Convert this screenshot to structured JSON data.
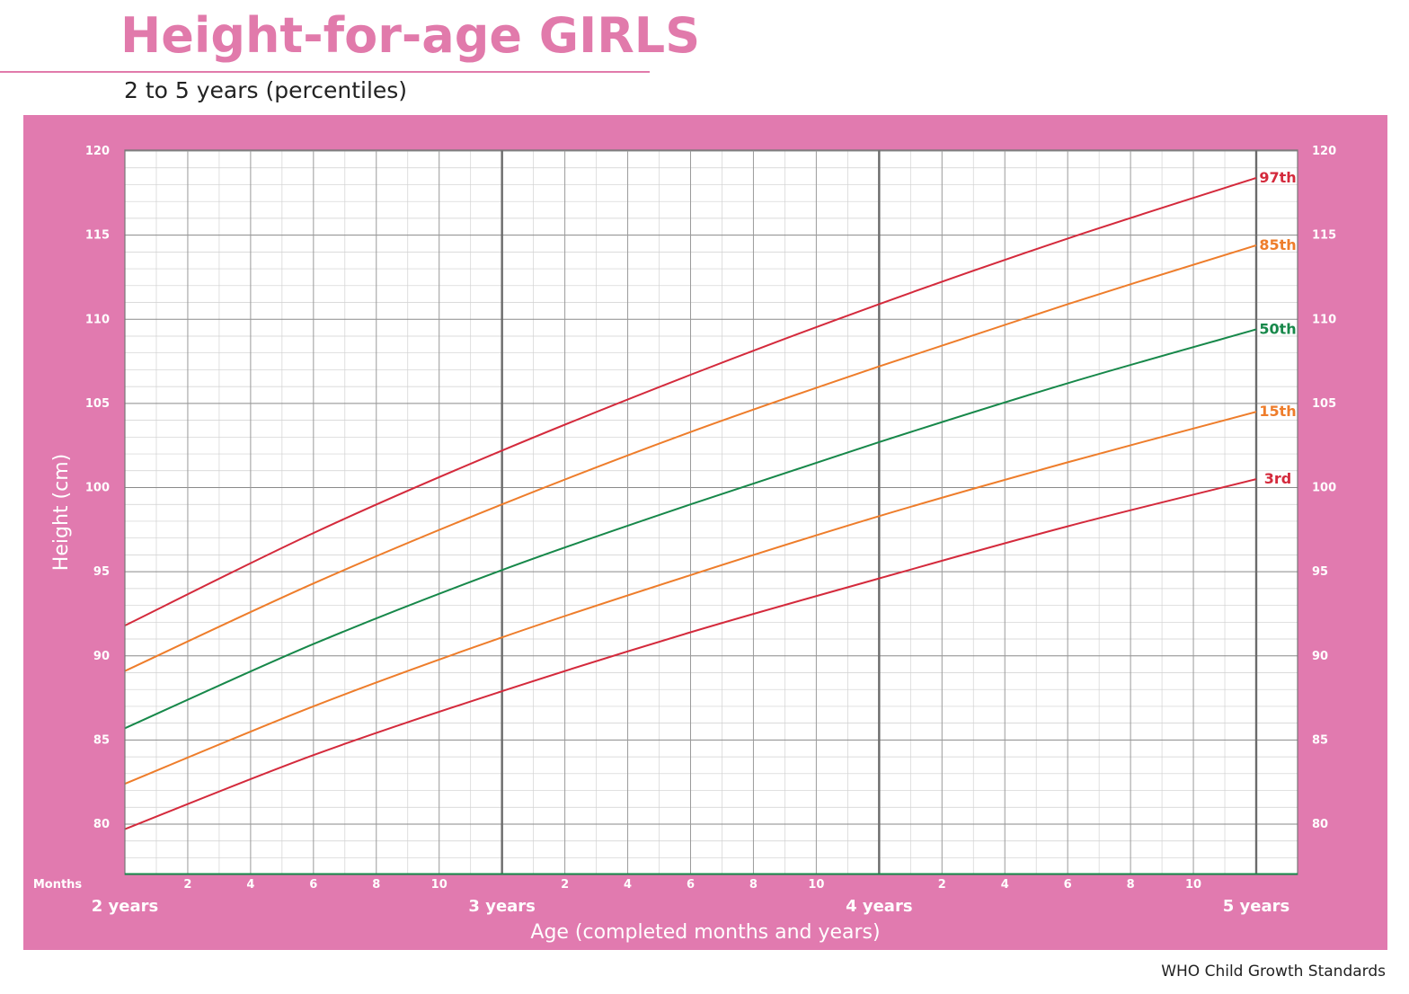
{
  "header": {
    "title": "Height-for-age GIRLS",
    "subtitle": "2 to 5 years (percentiles)"
  },
  "footer": {
    "source": "WHO Child Growth Standards"
  },
  "colors": {
    "panel": "#e17aaf",
    "title": "#e17aab",
    "p3_p97": "#d42a3c",
    "p15_p85": "#ee7d2b",
    "p50": "#17884a"
  },
  "chart_data": {
    "type": "line",
    "ylabel": "Height (cm)",
    "xlabel": "Age (completed months and years)",
    "months_label": "Months",
    "x_unit": "months",
    "xlim": [
      24,
      60
    ],
    "ylim": [
      77,
      120
    ],
    "y_ticks": [
      80,
      85,
      90,
      95,
      100,
      105,
      110,
      115,
      120
    ],
    "month_ticks": [
      "2",
      "4",
      "6",
      "8",
      "10"
    ],
    "year_ticks": [
      {
        "label": "2 years",
        "month": 24
      },
      {
        "label": "3 years",
        "month": 36
      },
      {
        "label": "4 years",
        "month": 48
      },
      {
        "label": "5 years",
        "month": 60
      }
    ],
    "grid": true,
    "x": [
      24,
      30,
      36,
      42,
      48,
      54,
      60
    ],
    "series": [
      {
        "name": "97th",
        "values": [
          91.8,
          97.3,
          102.2,
          106.7,
          110.9,
          114.8,
          118.4
        ]
      },
      {
        "name": "85th",
        "values": [
          89.1,
          94.3,
          99.0,
          103.3,
          107.2,
          110.9,
          114.4
        ]
      },
      {
        "name": "50th",
        "values": [
          85.7,
          90.7,
          95.1,
          99.0,
          102.7,
          106.2,
          109.4
        ]
      },
      {
        "name": "15th",
        "values": [
          82.4,
          87.0,
          91.1,
          94.8,
          98.3,
          101.5,
          104.5
        ]
      },
      {
        "name": "3rd",
        "values": [
          79.7,
          84.1,
          87.9,
          91.4,
          94.6,
          97.7,
          100.5
        ]
      }
    ]
  }
}
